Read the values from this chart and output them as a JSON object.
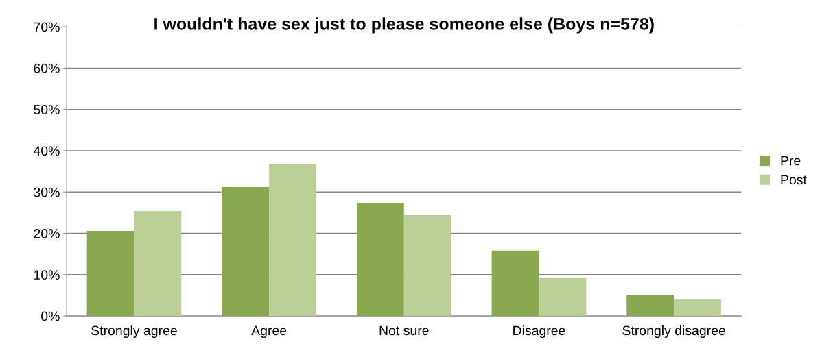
{
  "chart_data": {
    "type": "bar",
    "title": "I wouldn't have sex just to please someone else (Boys n=578)",
    "categories": [
      "Strongly agree",
      "Agree",
      "Not sure",
      "Disagree",
      "Strongly disagree"
    ],
    "series": [
      {
        "name": "Pre",
        "color": "#8aa84f",
        "values": [
          20.6,
          31.2,
          27.4,
          15.8,
          5.1
        ]
      },
      {
        "name": "Post",
        "color": "#bccf96",
        "values": [
          25.4,
          36.8,
          24.4,
          9.3,
          4.0
        ]
      }
    ],
    "ylim": [
      0,
      70
    ],
    "yticks": [
      {
        "value": 0,
        "label": "0%"
      },
      {
        "value": 10,
        "label": "10%"
      },
      {
        "value": 20,
        "label": "20%"
      },
      {
        "value": 30,
        "label": "30%"
      },
      {
        "value": 40,
        "label": "40%"
      },
      {
        "value": 50,
        "label": "50%"
      },
      {
        "value": 60,
        "label": "60%"
      },
      {
        "value": 70,
        "label": "70%"
      }
    ],
    "grid": "y",
    "legend": "right"
  }
}
